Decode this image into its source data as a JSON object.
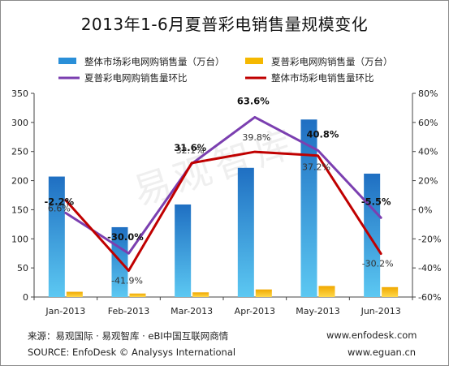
{
  "title": "2013年1-6月夏普彩电销售量规模变化",
  "chart_data": {
    "type": "bar",
    "categories": [
      "Jan-2013",
      "Feb-2013",
      "Mar-2013",
      "Apr-2013",
      "May-2013",
      "Jun-2013"
    ],
    "series": [
      {
        "name": "整体市场彩电网购销售量（万台）",
        "type": "bar",
        "axis": "left",
        "color": "#2a8fd8",
        "values": [
          207,
          120,
          159,
          222,
          305,
          212
        ]
      },
      {
        "name": "夏普彩电网购销售量（万台）",
        "type": "bar",
        "axis": "left",
        "color": "#f5b800",
        "values": [
          9,
          6,
          8,
          13,
          19,
          17
        ]
      },
      {
        "name": "夏普彩电网购销售量环比",
        "type": "line",
        "axis": "right",
        "color": "#7b3fb0",
        "values": [
          -2.2,
          -30.0,
          31.6,
          63.6,
          40.8,
          -5.5
        ],
        "labels": [
          "-2.2%",
          "-30.0%",
          "31.6%",
          "63.6%",
          "40.8%",
          "-5.5%"
        ]
      },
      {
        "name": "整体市场彩电销售量环比",
        "type": "line",
        "axis": "right",
        "color": "#c00000",
        "values": [
          6.6,
          -41.9,
          32.1,
          39.8,
          37.2,
          -30.2
        ],
        "labels": [
          "6.6%",
          "-41.9%",
          "32.1%",
          "39.8%",
          "37.2%",
          "-30.2%"
        ]
      }
    ],
    "y_left": {
      "min": 0,
      "max": 350,
      "step": 50,
      "ticks": [
        "0",
        "50",
        "100",
        "150",
        "200",
        "250",
        "300",
        "350"
      ]
    },
    "y_right": {
      "min": -60,
      "max": 80,
      "step": 20,
      "ticks": [
        "-60%",
        "-40%",
        "-20%",
        "0%",
        "20%",
        "40%",
        "60%",
        "80%"
      ]
    },
    "grid": false,
    "legend": "top"
  },
  "footer": {
    "source_cn": "来源：易观国际 · 易观智库 · eBI中国互联网商情",
    "source_en": "SOURCE: EnfoDesk © Analysys International",
    "site1": "www.enfodesk.com",
    "site2": "www.eguan.cn"
  },
  "watermark": "易观智库"
}
